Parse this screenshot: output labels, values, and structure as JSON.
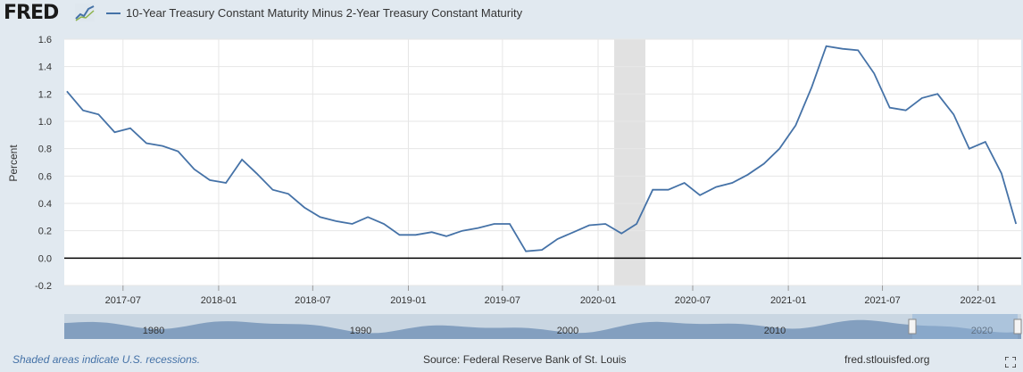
{
  "brand": {
    "logo_text": "FRED"
  },
  "legend": {
    "series_label": "10-Year Treasury Constant Maturity Minus 2-Year Treasury Constant Maturity",
    "color": "#4572a7"
  },
  "footer": {
    "recession_note": "Shaded areas indicate U.S. recessions.",
    "source": "Source: Federal Reserve Bank of St. Louis",
    "site": "fred.stlouisfed.org"
  },
  "chart_data": {
    "type": "line",
    "title": "10-Year Treasury Constant Maturity Minus 2-Year Treasury Constant Maturity",
    "xlabel": "",
    "ylabel": "Percent",
    "xlim": [
      "2017-03-10",
      "2022-03-25"
    ],
    "ylim": [
      -0.2,
      1.6
    ],
    "y_ticks": [
      "-0.2",
      "0.0",
      "0.2",
      "0.4",
      "0.6",
      "0.8",
      "1.0",
      "1.2",
      "1.4",
      "1.6"
    ],
    "x_ticks": [
      "2017-07",
      "2018-01",
      "2018-07",
      "2019-01",
      "2019-07",
      "2020-01",
      "2020-07",
      "2021-01",
      "2021-07",
      "2022-01"
    ],
    "grid": true,
    "zero_line": true,
    "recession_shading": [
      [
        "2020-02",
        "2020-04"
      ]
    ],
    "navigator_labels": [
      "1980",
      "1990",
      "2000",
      "2010",
      "2020"
    ],
    "series": [
      {
        "name": "10-Year Treasury Constant Maturity Minus 2-Year Treasury Constant Maturity",
        "color": "#4572a7",
        "x": [
          "2017-03",
          "2017-04",
          "2017-05",
          "2017-06",
          "2017-07",
          "2017-08",
          "2017-09",
          "2017-10",
          "2017-11",
          "2017-12",
          "2018-01",
          "2018-02",
          "2018-03",
          "2018-04",
          "2018-05",
          "2018-06",
          "2018-07",
          "2018-08",
          "2018-09",
          "2018-10",
          "2018-11",
          "2018-12",
          "2019-01",
          "2019-02",
          "2019-03",
          "2019-04",
          "2019-05",
          "2019-06",
          "2019-07",
          "2019-08",
          "2019-09",
          "2019-10",
          "2019-11",
          "2019-12",
          "2020-01",
          "2020-02",
          "2020-03",
          "2020-04",
          "2020-05",
          "2020-06",
          "2020-07",
          "2020-08",
          "2020-09",
          "2020-10",
          "2020-11",
          "2020-12",
          "2021-01",
          "2021-02",
          "2021-03",
          "2021-04",
          "2021-05",
          "2021-06",
          "2021-07",
          "2021-08",
          "2021-09",
          "2021-10",
          "2021-11",
          "2021-12",
          "2022-01",
          "2022-02",
          "2022-03"
        ],
        "values": [
          1.22,
          1.08,
          1.05,
          0.92,
          0.95,
          0.84,
          0.82,
          0.78,
          0.65,
          0.57,
          0.55,
          0.72,
          0.62,
          0.5,
          0.47,
          0.37,
          0.3,
          0.27,
          0.25,
          0.3,
          0.25,
          0.17,
          0.17,
          0.19,
          0.16,
          0.2,
          0.22,
          0.25,
          0.25,
          0.05,
          0.06,
          0.14,
          0.19,
          0.24,
          0.25,
          0.18,
          0.25,
          0.5,
          0.5,
          0.55,
          0.46,
          0.52,
          0.55,
          0.61,
          0.69,
          0.8,
          0.97,
          1.25,
          1.55,
          1.53,
          1.52,
          1.35,
          1.1,
          1.08,
          1.17,
          1.2,
          1.05,
          0.8,
          0.85,
          0.62,
          0.25
        ]
      }
    ]
  }
}
